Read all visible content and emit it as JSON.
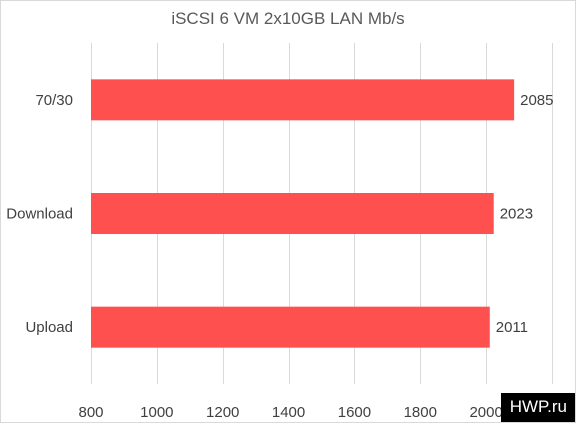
{
  "chart_data": {
    "type": "bar",
    "orientation": "horizontal",
    "title": "iSCSI 6 VM 2x10GB LAN Mb/s",
    "categories": [
      "70/30",
      "Download",
      "Upload"
    ],
    "series": [
      {
        "values": [
          2085,
          2023,
          2011
        ]
      }
    ],
    "xlim": [
      800,
      2200
    ],
    "xticks": [
      800,
      1000,
      1200,
      1400,
      1600,
      1800,
      2000,
      2200
    ],
    "grid": "vertical",
    "legend": "none",
    "bar_color": "#ff5050"
  },
  "watermark": "HWP.ru"
}
